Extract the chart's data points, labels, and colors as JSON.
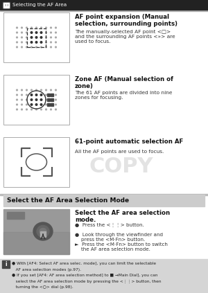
{
  "title_bar_text": "Selecting the AF Area",
  "bg_color": "#ffffff",
  "title_bar_color": "#555555",
  "title_bar_text_color": "#ffffff",
  "section_header_color": "#cccccc",
  "section_header_text": "Select the AF Area Selection Mode",
  "note_bg_color": "#d5d5d5",
  "items": [
    {
      "title": "AF point expansion (Manual\nselection, surrounding points)",
      "body": "The manually-selected AF point <□>\nand the surrounding AF points <»> are\nused to focus."
    },
    {
      "title": "Zone AF (Manual selection of\nzone)",
      "body": "The 61 AF points are divided into nine\nzones for focusing."
    },
    {
      "title": "61-point automatic selection AF",
      "body": "All the AF points are used to focus."
    }
  ],
  "mode_title": "Select the AF area selection\nmode.",
  "mode_bullets": [
    "●  Press the <⋮⋮> button.",
    "●  Look through the viewfinder and\n    press the <M·Fn> button.",
    "►  Press the <M·Fn> button to switch\n    the AF area selection mode."
  ],
  "note_lines": [
    "● With [AF4: Select AF area selec. mode], you can limit the selectable",
    "   AF area selection modes (p.97).",
    "● If you set [AF4: AF area selection method] to ■ →Main Dial], you can",
    "   select the AF area selection mode by pressing the <⋮⋮> button, then",
    "   turning the <○> dial (p.98)."
  ]
}
